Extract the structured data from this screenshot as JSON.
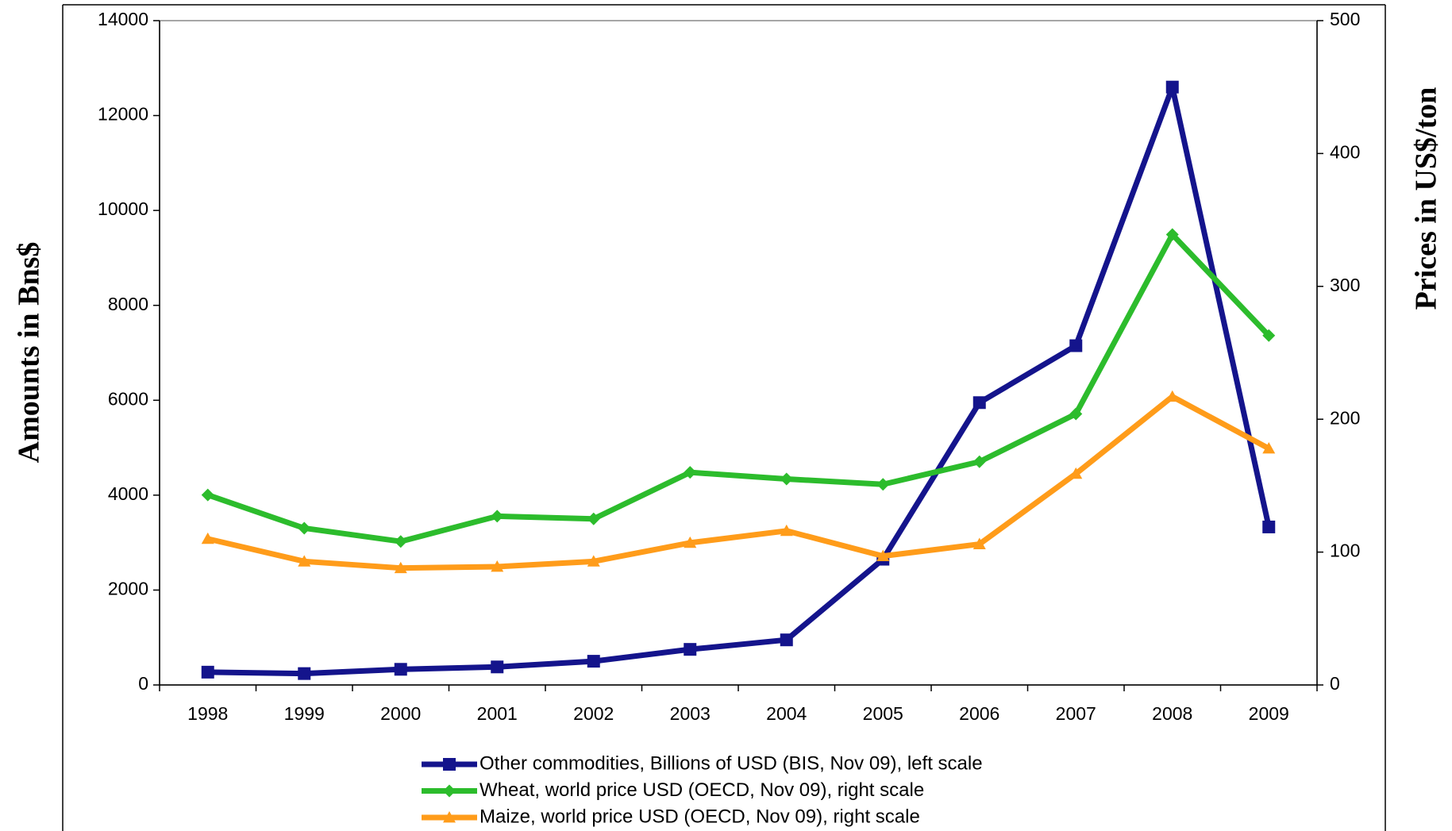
{
  "chart_data": {
    "type": "line",
    "y_label": "Amounts in Bns$",
    "y2_label": "Prices in US$/ton",
    "categories": [
      "1998",
      "1999",
      "2000",
      "2001",
      "2002",
      "2003",
      "2004",
      "2005",
      "2006",
      "2007",
      "2008",
      "2009"
    ],
    "series": [
      {
        "name": "Other commodities, Billions of USD (BIS, Nov 09), left scale",
        "color": "#14148c",
        "marker": "square",
        "values": [
          270,
          240,
          330,
          380,
          500,
          750,
          950,
          2650,
          5950,
          7150,
          12600,
          3330
        ]
      },
      {
        "name": "Wheat, world price USD (OECD, Nov 09), right scale",
        "color": "#2cbc2c",
        "marker": "diamond",
        "axis": "y2",
        "values": [
          143,
          118,
          108,
          127,
          125,
          160,
          155,
          151,
          168,
          204,
          339,
          263
        ]
      },
      {
        "name": "Maize, world price USD (OECD, Nov 09), right scale",
        "color": "#ff9c1a",
        "marker": "triangle",
        "axis": "y2",
        "values": [
          110,
          93,
          88,
          89,
          93,
          107,
          116,
          97,
          106,
          159,
          217,
          178
        ]
      }
    ],
    "ylim": [
      0,
      14000
    ],
    "yticks": [
      0,
      2000,
      4000,
      6000,
      8000,
      10000,
      12000,
      14000
    ],
    "y2lim": [
      0,
      500
    ],
    "y2ticks": [
      0,
      100,
      200,
      300,
      400,
      500
    ],
    "y_label_color": "#c0504d",
    "y2_label_color": "#2cbc2c"
  }
}
